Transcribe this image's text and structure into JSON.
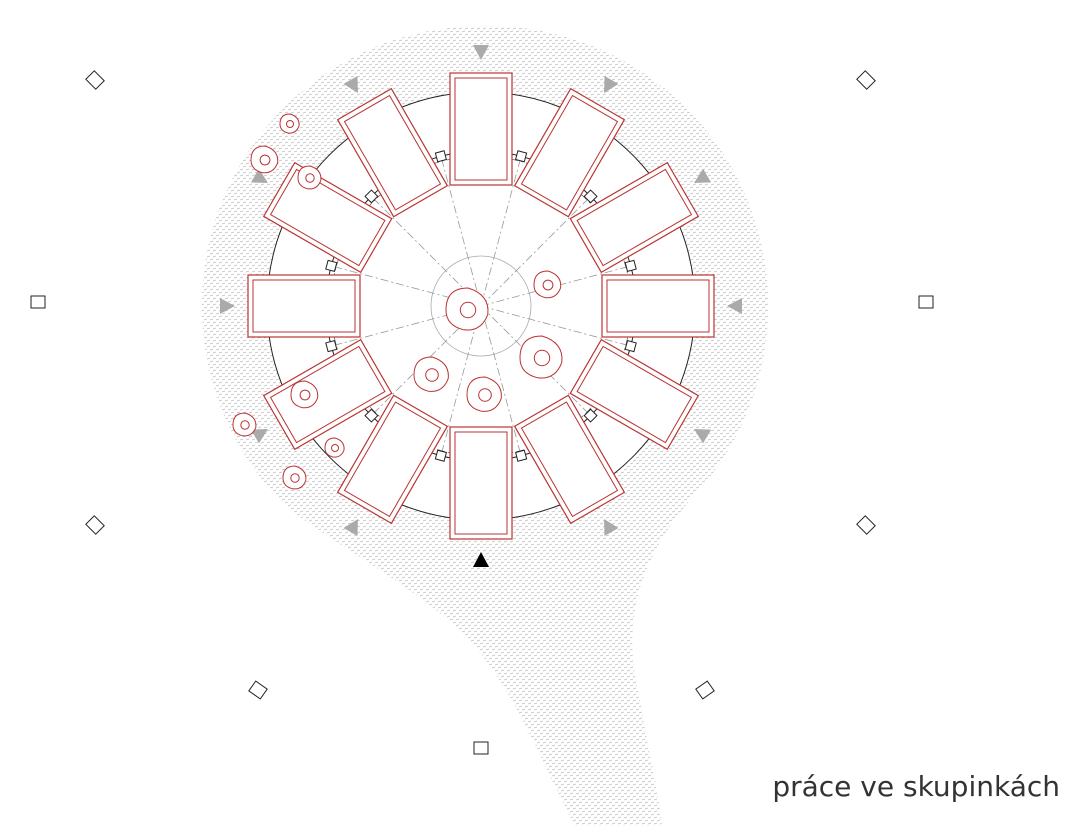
{
  "caption": "práce ve skupinkách"
}
